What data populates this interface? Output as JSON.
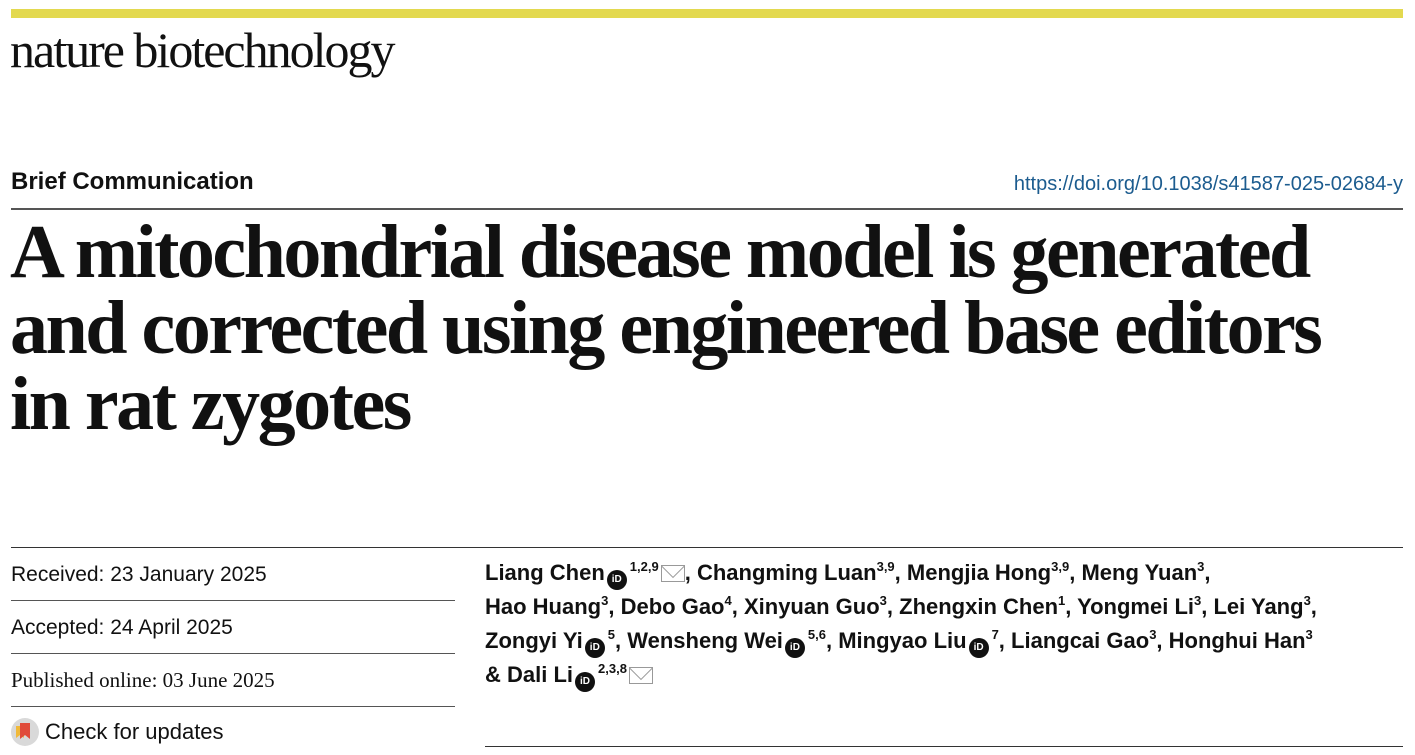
{
  "header": {
    "journal": "nature biotechnology",
    "accent_color": "#e3d94f"
  },
  "article": {
    "type": "Brief Communication",
    "doi": "https://doi.org/10.1038/s41587-025-02684-y",
    "title_lines": [
      "A mitochondrial disease model is generated",
      "and corrected using engineered base editors",
      "in rat zygotes"
    ]
  },
  "meta": {
    "received": "Received: 23 January 2025",
    "accepted": "Accepted: 24 April 2025",
    "published": "Published online: 03 June 2025",
    "check_updates": "Check for updates"
  },
  "authors": [
    {
      "name": "Liang Chen",
      "aff": "1,2,9",
      "orcid": true,
      "mail": true,
      "sep": ", "
    },
    {
      "name": "Changming Luan",
      "aff": "3,9",
      "sep": ", "
    },
    {
      "name": "Mengjia Hong",
      "aff": "3,9",
      "sep": ", "
    },
    {
      "name": "Meng Yuan",
      "aff": "3",
      "sep": ","
    },
    {
      "name": "Hao Huang",
      "aff": "3",
      "sep": ", "
    },
    {
      "name": "Debo Gao",
      "aff": "4",
      "sep": ", "
    },
    {
      "name": "Xinyuan Guo",
      "aff": "3",
      "sep": ", "
    },
    {
      "name": "Zhengxin Chen",
      "aff": "1",
      "sep": ", "
    },
    {
      "name": "Yongmei Li",
      "aff": "3",
      "sep": ", "
    },
    {
      "name": "Lei Yang",
      "aff": "3",
      "sep": ","
    },
    {
      "name": "Zongyi Yi",
      "aff": "5",
      "orcid": true,
      "sep": ", "
    },
    {
      "name": "Wensheng Wei",
      "aff": "5,6",
      "orcid": true,
      "sep": ", "
    },
    {
      "name": "Mingyao Liu",
      "aff": "7",
      "orcid": true,
      "sep": ", "
    },
    {
      "name": "Liangcai Gao",
      "aff": "3",
      "sep": ", "
    },
    {
      "name": "Honghui Han",
      "aff": "3",
      "sep": ""
    },
    {
      "name": "Dali Li",
      "aff": "2,3,8",
      "orcid": true,
      "mail": true,
      "sep": "",
      "prefix": "& "
    }
  ],
  "orcid_label": "iD"
}
